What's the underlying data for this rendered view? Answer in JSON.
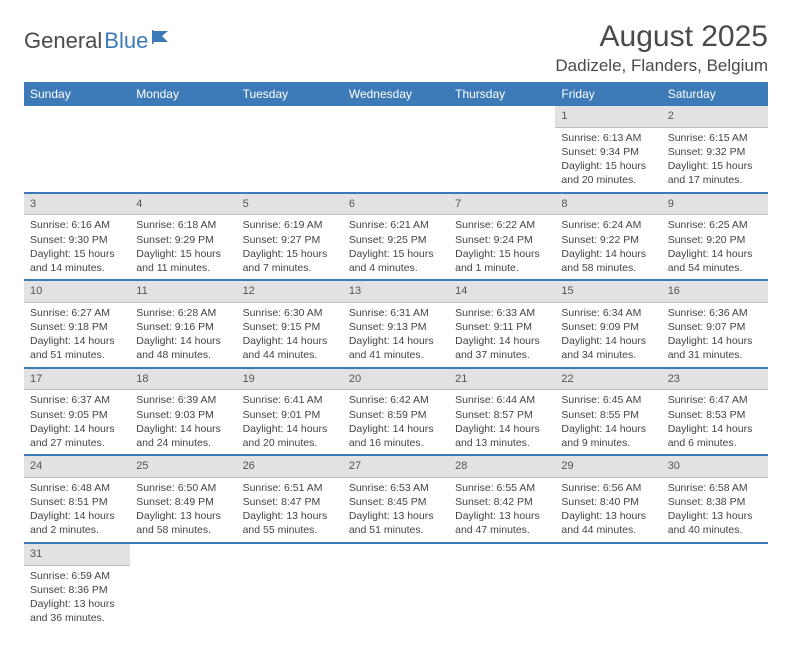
{
  "brand": {
    "word1": "General",
    "word2": "Blue"
  },
  "colors": {
    "accent": "#3d7ab8",
    "header_bg": "#3d7ab8",
    "daynum_bg": "#e2e2e2",
    "text": "#444444"
  },
  "title": "August 2025",
  "location": "Dadizele, Flanders, Belgium",
  "day_headers": [
    "Sunday",
    "Monday",
    "Tuesday",
    "Wednesday",
    "Thursday",
    "Friday",
    "Saturday"
  ],
  "weeks": [
    [
      null,
      null,
      null,
      null,
      null,
      {
        "n": "1",
        "sr": "Sunrise: 6:13 AM",
        "ss": "Sunset: 9:34 PM",
        "dl": "Daylight: 15 hours and 20 minutes."
      },
      {
        "n": "2",
        "sr": "Sunrise: 6:15 AM",
        "ss": "Sunset: 9:32 PM",
        "dl": "Daylight: 15 hours and 17 minutes."
      }
    ],
    [
      {
        "n": "3",
        "sr": "Sunrise: 6:16 AM",
        "ss": "Sunset: 9:30 PM",
        "dl": "Daylight: 15 hours and 14 minutes."
      },
      {
        "n": "4",
        "sr": "Sunrise: 6:18 AM",
        "ss": "Sunset: 9:29 PM",
        "dl": "Daylight: 15 hours and 11 minutes."
      },
      {
        "n": "5",
        "sr": "Sunrise: 6:19 AM",
        "ss": "Sunset: 9:27 PM",
        "dl": "Daylight: 15 hours and 7 minutes."
      },
      {
        "n": "6",
        "sr": "Sunrise: 6:21 AM",
        "ss": "Sunset: 9:25 PM",
        "dl": "Daylight: 15 hours and 4 minutes."
      },
      {
        "n": "7",
        "sr": "Sunrise: 6:22 AM",
        "ss": "Sunset: 9:24 PM",
        "dl": "Daylight: 15 hours and 1 minute."
      },
      {
        "n": "8",
        "sr": "Sunrise: 6:24 AM",
        "ss": "Sunset: 9:22 PM",
        "dl": "Daylight: 14 hours and 58 minutes."
      },
      {
        "n": "9",
        "sr": "Sunrise: 6:25 AM",
        "ss": "Sunset: 9:20 PM",
        "dl": "Daylight: 14 hours and 54 minutes."
      }
    ],
    [
      {
        "n": "10",
        "sr": "Sunrise: 6:27 AM",
        "ss": "Sunset: 9:18 PM",
        "dl": "Daylight: 14 hours and 51 minutes."
      },
      {
        "n": "11",
        "sr": "Sunrise: 6:28 AM",
        "ss": "Sunset: 9:16 PM",
        "dl": "Daylight: 14 hours and 48 minutes."
      },
      {
        "n": "12",
        "sr": "Sunrise: 6:30 AM",
        "ss": "Sunset: 9:15 PM",
        "dl": "Daylight: 14 hours and 44 minutes."
      },
      {
        "n": "13",
        "sr": "Sunrise: 6:31 AM",
        "ss": "Sunset: 9:13 PM",
        "dl": "Daylight: 14 hours and 41 minutes."
      },
      {
        "n": "14",
        "sr": "Sunrise: 6:33 AM",
        "ss": "Sunset: 9:11 PM",
        "dl": "Daylight: 14 hours and 37 minutes."
      },
      {
        "n": "15",
        "sr": "Sunrise: 6:34 AM",
        "ss": "Sunset: 9:09 PM",
        "dl": "Daylight: 14 hours and 34 minutes."
      },
      {
        "n": "16",
        "sr": "Sunrise: 6:36 AM",
        "ss": "Sunset: 9:07 PM",
        "dl": "Daylight: 14 hours and 31 minutes."
      }
    ],
    [
      {
        "n": "17",
        "sr": "Sunrise: 6:37 AM",
        "ss": "Sunset: 9:05 PM",
        "dl": "Daylight: 14 hours and 27 minutes."
      },
      {
        "n": "18",
        "sr": "Sunrise: 6:39 AM",
        "ss": "Sunset: 9:03 PM",
        "dl": "Daylight: 14 hours and 24 minutes."
      },
      {
        "n": "19",
        "sr": "Sunrise: 6:41 AM",
        "ss": "Sunset: 9:01 PM",
        "dl": "Daylight: 14 hours and 20 minutes."
      },
      {
        "n": "20",
        "sr": "Sunrise: 6:42 AM",
        "ss": "Sunset: 8:59 PM",
        "dl": "Daylight: 14 hours and 16 minutes."
      },
      {
        "n": "21",
        "sr": "Sunrise: 6:44 AM",
        "ss": "Sunset: 8:57 PM",
        "dl": "Daylight: 14 hours and 13 minutes."
      },
      {
        "n": "22",
        "sr": "Sunrise: 6:45 AM",
        "ss": "Sunset: 8:55 PM",
        "dl": "Daylight: 14 hours and 9 minutes."
      },
      {
        "n": "23",
        "sr": "Sunrise: 6:47 AM",
        "ss": "Sunset: 8:53 PM",
        "dl": "Daylight: 14 hours and 6 minutes."
      }
    ],
    [
      {
        "n": "24",
        "sr": "Sunrise: 6:48 AM",
        "ss": "Sunset: 8:51 PM",
        "dl": "Daylight: 14 hours and 2 minutes."
      },
      {
        "n": "25",
        "sr": "Sunrise: 6:50 AM",
        "ss": "Sunset: 8:49 PM",
        "dl": "Daylight: 13 hours and 58 minutes."
      },
      {
        "n": "26",
        "sr": "Sunrise: 6:51 AM",
        "ss": "Sunset: 8:47 PM",
        "dl": "Daylight: 13 hours and 55 minutes."
      },
      {
        "n": "27",
        "sr": "Sunrise: 6:53 AM",
        "ss": "Sunset: 8:45 PM",
        "dl": "Daylight: 13 hours and 51 minutes."
      },
      {
        "n": "28",
        "sr": "Sunrise: 6:55 AM",
        "ss": "Sunset: 8:42 PM",
        "dl": "Daylight: 13 hours and 47 minutes."
      },
      {
        "n": "29",
        "sr": "Sunrise: 6:56 AM",
        "ss": "Sunset: 8:40 PM",
        "dl": "Daylight: 13 hours and 44 minutes."
      },
      {
        "n": "30",
        "sr": "Sunrise: 6:58 AM",
        "ss": "Sunset: 8:38 PM",
        "dl": "Daylight: 13 hours and 40 minutes."
      }
    ],
    [
      {
        "n": "31",
        "sr": "Sunrise: 6:59 AM",
        "ss": "Sunset: 8:36 PM",
        "dl": "Daylight: 13 hours and 36 minutes."
      },
      null,
      null,
      null,
      null,
      null,
      null
    ]
  ]
}
